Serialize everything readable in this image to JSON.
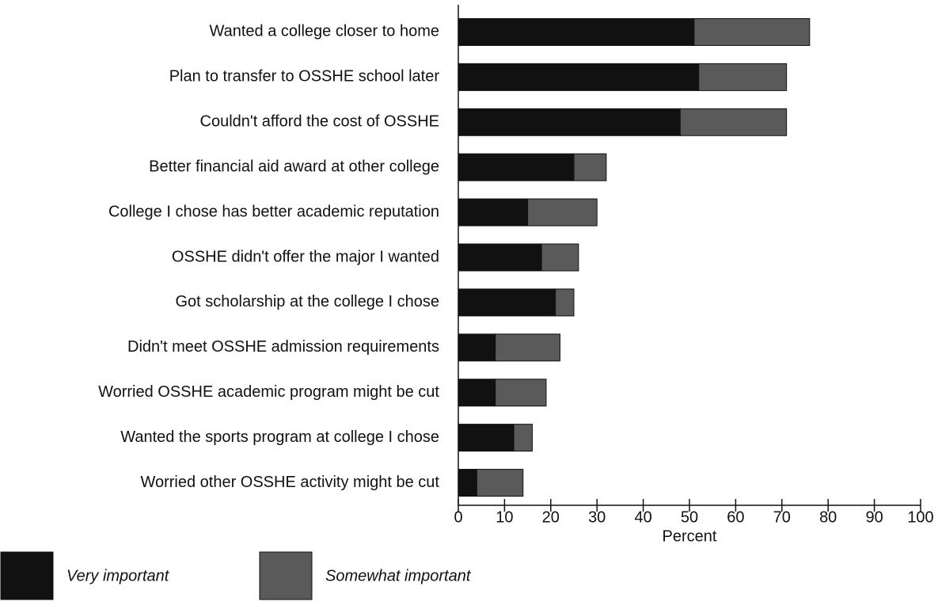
{
  "chart_data": {
    "type": "stacked_bar",
    "orientation": "horizontal",
    "categories": [
      "Wanted a college closer to home",
      "Plan to transfer to OSSHE school later",
      "Couldn't afford the cost of OSSHE",
      "Better financial aid award at other college",
      "College I chose has better academic reputation",
      "OSSHE didn't offer the major I wanted",
      "Got scholarship at the college I chose",
      "Didn't meet OSSHE admission requirements",
      "Worried OSSHE academic program might be cut",
      "Wanted the sports program at college I chose",
      "Worried other OSSHE activity might be cut"
    ],
    "series": [
      {
        "name": "Very important",
        "color": "#111111",
        "values": [
          51,
          52,
          48,
          25,
          15,
          18,
          21,
          8,
          8,
          12,
          4
        ]
      },
      {
        "name": "Somewhat important",
        "color": "#5a5a5a",
        "values": [
          25,
          19,
          23,
          7,
          15,
          8,
          4,
          14,
          11,
          4,
          10
        ]
      }
    ],
    "xlabel": "Percent",
    "xlim": [
      0,
      100
    ],
    "xticks": [
      0,
      10,
      20,
      30,
      40,
      50,
      60,
      70,
      80,
      90,
      100
    ],
    "legend": "bottom-left"
  }
}
